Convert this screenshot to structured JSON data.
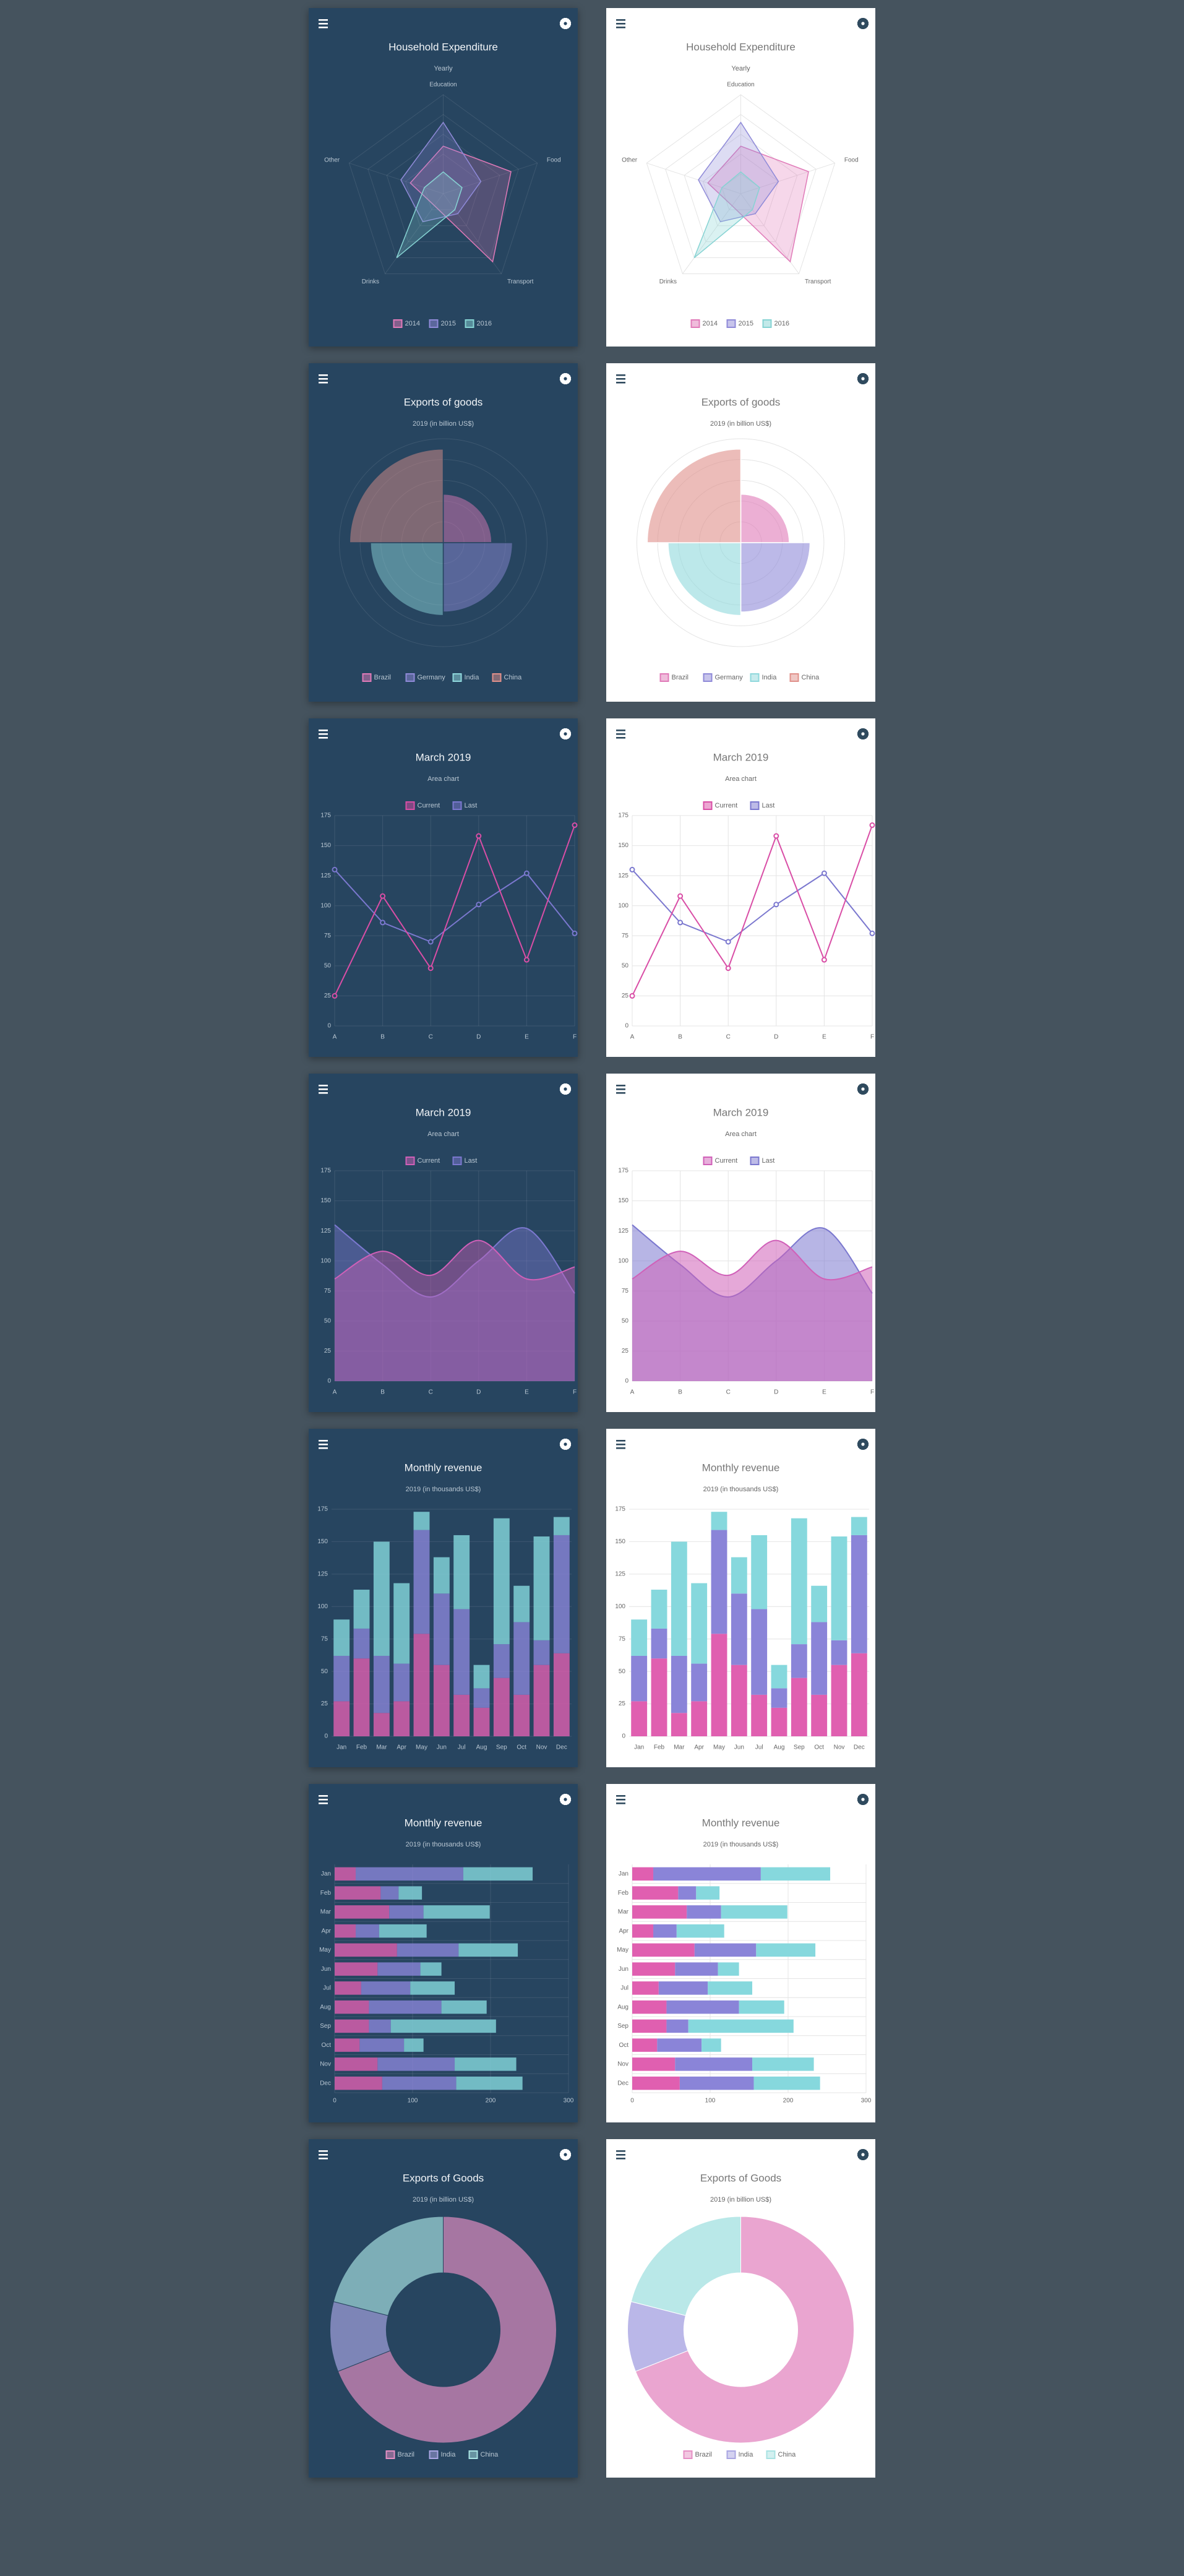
{
  "chart_data": [
    {
      "type": "radar",
      "title": "Household Expenditure",
      "subtitle": "Yearly",
      "categories": [
        "Education",
        "Food",
        "Transport",
        "Drinks",
        "Other"
      ],
      "rlim": [
        0,
        100
      ],
      "rticks": [
        20,
        40,
        60,
        80,
        100
      ],
      "legend": "bottom",
      "series": [
        {
          "name": "2014",
          "color": "#e07ab8",
          "values": [
            48,
            72,
            85,
            15,
            35
          ]
        },
        {
          "name": "2015",
          "color": "#8f8ad8",
          "values": [
            72,
            40,
            25,
            35,
            45
          ]
        },
        {
          "name": "2016",
          "color": "#86d3d3",
          "values": [
            22,
            20,
            20,
            80,
            20
          ]
        }
      ]
    },
    {
      "type": "polarArea",
      "title": "Exports of goods",
      "subtitle": "2019 (in billion US$)",
      "categories": [
        "Brazil",
        "Germany",
        "India",
        "China"
      ],
      "values": [
        140,
        200,
        210,
        270
      ],
      "colors": [
        "#e07ab8",
        "#8f8ad8",
        "#8fd8dc",
        "#e0908a"
      ],
      "rlim": [
        0,
        300
      ],
      "rticks": [
        60,
        120,
        180,
        240,
        300
      ],
      "legend": "bottom"
    },
    {
      "type": "line",
      "title": "March 2019",
      "subtitle": "Area chart",
      "categories": [
        "A",
        "B",
        "C",
        "D",
        "E",
        "F"
      ],
      "ylim": [
        0,
        175
      ],
      "yticks": [
        0,
        25,
        50,
        75,
        100,
        125,
        150,
        175
      ],
      "grid": true,
      "legend": "top",
      "series": [
        {
          "name": "Current",
          "color": "#d94ea6",
          "values": [
            25,
            108,
            48,
            158,
            55,
            167
          ]
        },
        {
          "name": "Last",
          "color": "#7b78cf",
          "values": [
            130,
            86,
            70,
            101,
            127,
            77
          ]
        }
      ]
    },
    {
      "type": "area",
      "title": "March 2019",
      "subtitle": "Area chart",
      "smooth": true,
      "categories": [
        "A",
        "B",
        "C",
        "D",
        "E",
        "F"
      ],
      "ylim": [
        0,
        175
      ],
      "yticks": [
        0,
        25,
        50,
        75,
        100,
        125,
        150,
        175
      ],
      "grid": true,
      "legend": "top",
      "series": [
        {
          "name": "Current",
          "color": "#d060b8",
          "values": [
            85,
            108,
            88,
            117,
            85,
            95
          ]
        },
        {
          "name": "Last",
          "color": "#7b78cf",
          "values": [
            130,
            97,
            70,
            100,
            127,
            73
          ]
        }
      ]
    },
    {
      "type": "bar",
      "stacked": true,
      "title": "Monthly revenue",
      "subtitle": "2019 (in thousands US$)",
      "categories": [
        "Jan",
        "Feb",
        "Mar",
        "Apr",
        "May",
        "Jun",
        "Jul",
        "Aug",
        "Sep",
        "Oct",
        "Nov",
        "Dec"
      ],
      "ylim": [
        0,
        175
      ],
      "yticks": [
        0,
        25,
        50,
        75,
        100,
        125,
        150,
        175
      ],
      "grid": true,
      "series": [
        {
          "color": "#e05fb0",
          "values": [
            27,
            60,
            18,
            27,
            79,
            55,
            32,
            22,
            45,
            32,
            55,
            64
          ]
        },
        {
          "color": "#8a84d8",
          "values": [
            35,
            23,
            44,
            29,
            80,
            55,
            66,
            15,
            26,
            56,
            19,
            91
          ]
        },
        {
          "color": "#86d8dd",
          "values": [
            28,
            30,
            88,
            62,
            14,
            28,
            57,
            18,
            97,
            28,
            80,
            14
          ]
        }
      ]
    },
    {
      "type": "hbar",
      "stacked": true,
      "title": "Monthly revenue",
      "subtitle": "2019 (in thousands US$)",
      "categories": [
        "Jan",
        "Feb",
        "Mar",
        "Apr",
        "May",
        "Jun",
        "Jul",
        "Aug",
        "Sep",
        "Oct",
        "Nov",
        "Dec"
      ],
      "xlim": [
        0,
        300
      ],
      "xticks": [
        0,
        100,
        200,
        300
      ],
      "grid": true,
      "series": [
        {
          "color": "#e05fb0",
          "values": [
            27,
            59,
            70,
            27,
            80,
            55,
            34,
            44,
            44,
            32,
            55,
            61
          ]
        },
        {
          "color": "#8a84d8",
          "values": [
            138,
            23,
            44,
            30,
            79,
            55,
            63,
            93,
            28,
            57,
            99,
            95
          ]
        },
        {
          "color": "#86d8dd",
          "values": [
            89,
            30,
            85,
            61,
            76,
            27,
            57,
            58,
            135,
            25,
            79,
            85
          ]
        }
      ]
    },
    {
      "type": "doughnut",
      "title": "Exports of Goods",
      "subtitle": "2019 (in billion US$)",
      "categories": [
        "Brazil",
        "India",
        "China"
      ],
      "values": [
        69,
        10,
        21
      ],
      "colors": [
        "#e58fc4",
        "#a9a5e2",
        "#a8e2e2"
      ],
      "legend": "bottom"
    }
  ]
}
